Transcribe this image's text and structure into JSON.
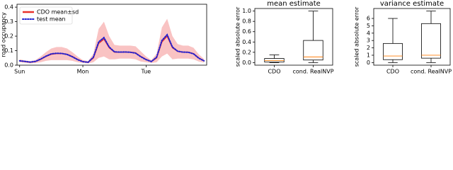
{
  "chart_data": [
    {
      "type": "line",
      "ylabel": "road occupancy",
      "x": [
        0,
        2,
        4,
        6,
        8,
        10,
        12,
        14,
        16,
        18,
        20,
        22,
        24,
        26,
        28,
        30,
        32,
        34,
        36,
        38,
        40,
        42,
        44,
        46,
        48,
        50,
        52,
        54,
        56,
        58,
        60,
        62,
        64,
        66,
        68,
        70
      ],
      "xlim": [
        -1,
        71
      ],
      "xticks": [
        {
          "value": 0,
          "label": "Sun"
        },
        {
          "value": 24,
          "label": "Mon"
        },
        {
          "value": 48,
          "label": "Tue"
        }
      ],
      "ylim": [
        0,
        0.42
      ],
      "yticks": [
        {
          "value": 0,
          "label": "0.0"
        },
        0.1,
        0.2,
        0.3,
        0.4
      ],
      "legend": "upper left",
      "series": [
        {
          "name": "CDO mean±sd",
          "color": "#e8302a",
          "band_color": "#f8b4b4",
          "values": [
            0.03,
            0.025,
            0.02,
            0.025,
            0.04,
            0.06,
            0.075,
            0.08,
            0.08,
            0.075,
            0.06,
            0.04,
            0.025,
            0.02,
            0.05,
            0.15,
            0.18,
            0.12,
            0.09,
            0.09,
            0.09,
            0.09,
            0.085,
            0.06,
            0.04,
            0.025,
            0.05,
            0.16,
            0.2,
            0.12,
            0.095,
            0.09,
            0.09,
            0.08,
            0.05,
            0.03
          ],
          "sd": [
            0.01,
            0.008,
            0.008,
            0.01,
            0.02,
            0.03,
            0.04,
            0.045,
            0.045,
            0.04,
            0.03,
            0.02,
            0.01,
            0.008,
            0.03,
            0.1,
            0.12,
            0.08,
            0.05,
            0.045,
            0.045,
            0.045,
            0.045,
            0.035,
            0.02,
            0.01,
            0.03,
            0.1,
            0.12,
            0.08,
            0.05,
            0.045,
            0.045,
            0.04,
            0.025,
            0.012
          ]
        },
        {
          "name": "test mean",
          "color": "#2020d0",
          "linestyle": "dotted",
          "values": [
            0.03,
            0.026,
            0.021,
            0.026,
            0.042,
            0.062,
            0.078,
            0.082,
            0.081,
            0.074,
            0.058,
            0.038,
            0.024,
            0.02,
            0.055,
            0.16,
            0.19,
            0.125,
            0.092,
            0.09,
            0.091,
            0.089,
            0.083,
            0.058,
            0.038,
            0.025,
            0.055,
            0.17,
            0.21,
            0.125,
            0.096,
            0.09,
            0.089,
            0.078,
            0.048,
            0.03
          ]
        }
      ]
    },
    {
      "type": "box",
      "title": "mean estimate",
      "ylabel": "scaled absolute error",
      "categories": [
        "CDO",
        "cond. RealNVP"
      ],
      "ylim": [
        -0.05,
        1.05
      ],
      "yticks": [
        {
          "value": 0,
          "label": "0.0"
        },
        0.2,
        0.4,
        0.6,
        0.8,
        {
          "value": 1,
          "label": "1.0"
        }
      ],
      "median_color": "#ff7f0e",
      "boxes": [
        {
          "low": 0,
          "q1": 0.01,
          "median": 0.04,
          "q3": 0.08,
          "high": 0.15
        },
        {
          "low": 0,
          "q1": 0.05,
          "median": 0.11,
          "q3": 0.43,
          "high": 1.0
        }
      ]
    },
    {
      "type": "box",
      "title": "variance estimate",
      "ylabel": "scaled absolute error",
      "categories": [
        "CDO",
        "cond. RealNVP"
      ],
      "ylim": [
        -0.35,
        7.35
      ],
      "yticks": [
        0,
        1,
        2,
        3,
        4,
        5,
        6
      ],
      "median_color": "#ff7f0e",
      "boxes": [
        {
          "low": 0,
          "q1": 0.4,
          "median": 0.9,
          "q3": 2.6,
          "high": 6.0
        },
        {
          "low": 0,
          "q1": 0.6,
          "median": 1.0,
          "q3": 5.3,
          "high": 7.0
        }
      ]
    }
  ]
}
